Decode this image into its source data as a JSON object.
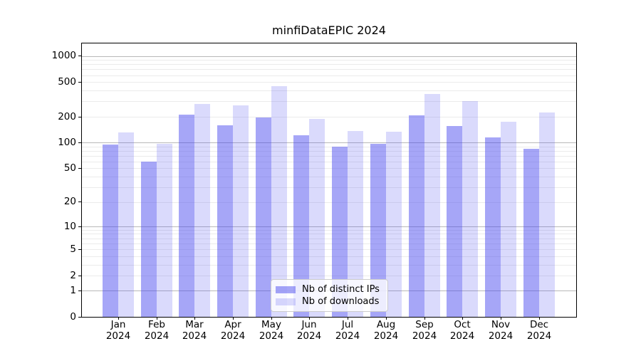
{
  "chart_data": {
    "type": "bar",
    "title": "minfiDataEPIC 2024",
    "categories": [
      "Jan 2024",
      "Feb 2024",
      "Mar 2024",
      "Apr 2024",
      "May 2024",
      "Jun 2024",
      "Jul 2024",
      "Aug 2024",
      "Sep 2024",
      "Oct 2024",
      "Nov 2024",
      "Dec 2024"
    ],
    "series": [
      {
        "name": "Nb of distinct IPs",
        "color": "rgba(68,68,238,0.48)",
        "values": [
          95,
          60,
          209,
          158,
          196,
          122,
          90,
          97,
          207,
          154,
          115,
          84
        ]
      },
      {
        "name": "Nb of downloads",
        "color": "rgba(68,68,238,0.20)",
        "values": [
          132,
          97,
          280,
          268,
          445,
          188,
          135,
          133,
          362,
          300,
          175,
          222
        ]
      }
    ],
    "xlabel": "",
    "ylabel": "",
    "y_ticks": [
      0,
      1,
      2,
      5,
      10,
      20,
      50,
      100,
      200,
      500,
      1000
    ],
    "y_scale": "log10(1+v)",
    "y_axis_max": 1390,
    "grid": {
      "on": true,
      "major_at": [
        1,
        10,
        100,
        1000
      ],
      "major_color": "#b9b9b9",
      "minor_color": "#ebebeb"
    },
    "legend": {
      "position": "lower center",
      "entries": [
        "Nb of distinct IPs",
        "Nb of downloads"
      ]
    }
  }
}
